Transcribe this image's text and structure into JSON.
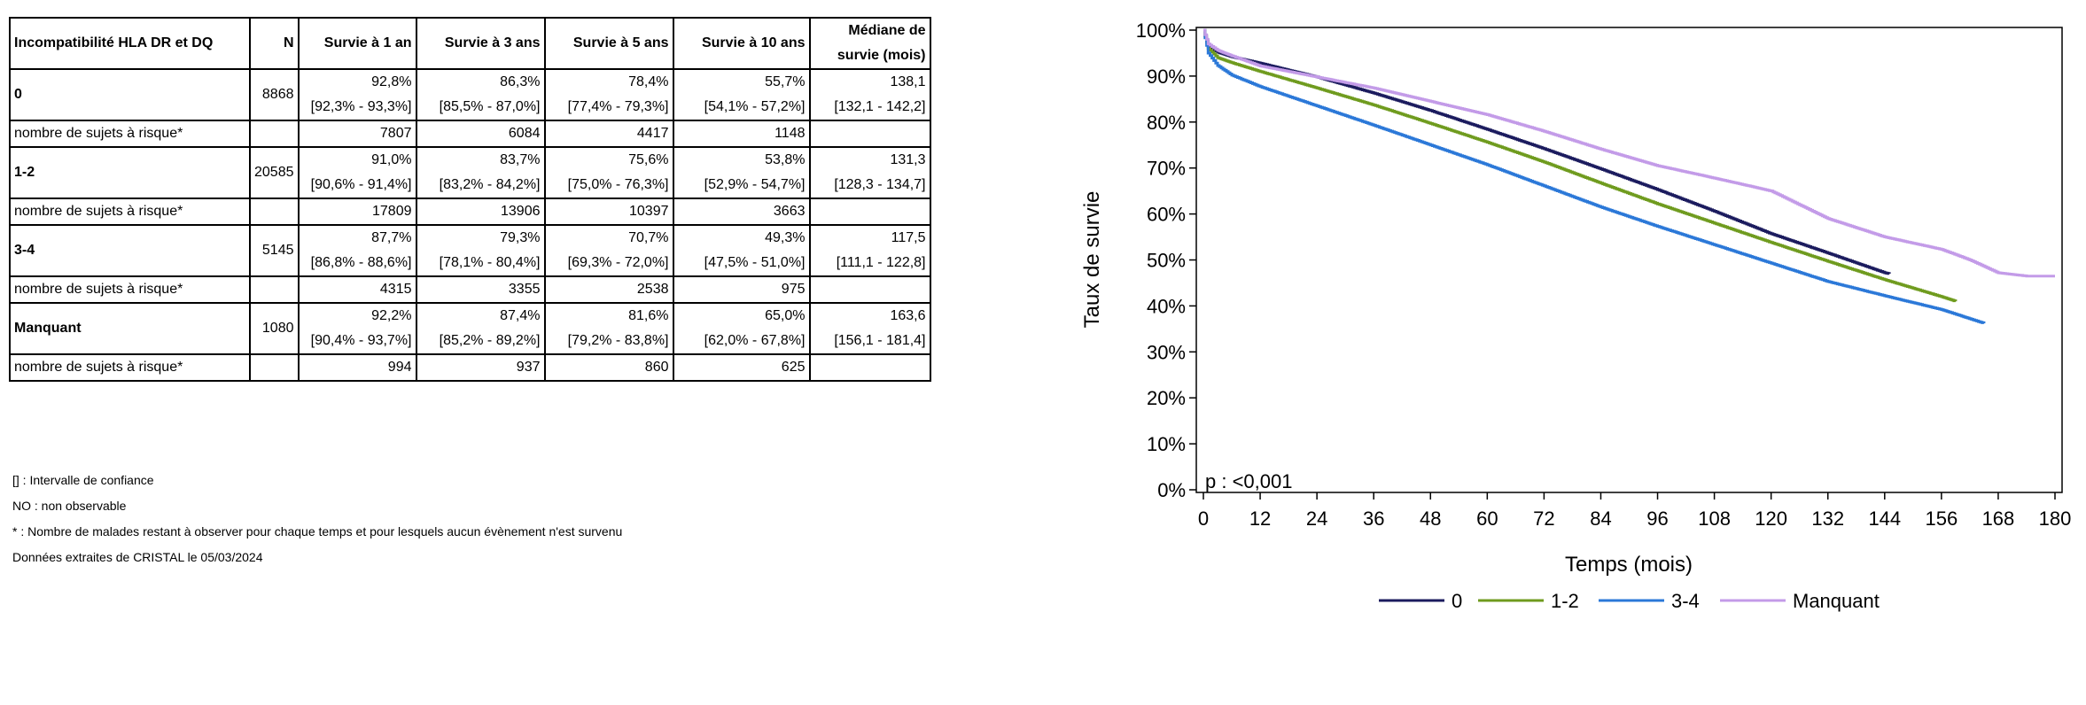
{
  "table": {
    "headers": [
      "Incompatibilité HLA DR et DQ",
      "N",
      "Survie à 1 an",
      "Survie à 3 ans",
      "Survie à 5 ans",
      "Survie à 10 ans",
      "Médiane de survie (mois)"
    ],
    "header_median_line1": "Médiane de",
    "header_median_line2": "survie (mois)",
    "groups": [
      {
        "label": "0",
        "n": "8868",
        "values": [
          "92,8%",
          "86,3%",
          "78,4%",
          "55,7%",
          "138,1"
        ],
        "ci": [
          "[92,3% - 93,3%]",
          "[85,5% - 87,0%]",
          "[77,4% - 79,3%]",
          "[54,1% - 57,2%]",
          "[132,1 - 142,2]"
        ],
        "risk_label": "nombre de sujets à risque*",
        "risk": [
          "7807",
          "6084",
          "4417",
          "1148"
        ]
      },
      {
        "label": "1-2",
        "n": "20585",
        "values": [
          "91,0%",
          "83,7%",
          "75,6%",
          "53,8%",
          "131,3"
        ],
        "ci": [
          "[90,6% - 91,4%]",
          "[83,2% - 84,2%]",
          "[75,0% - 76,3%]",
          "[52,9% - 54,7%]",
          "[128,3 - 134,7]"
        ],
        "risk_label": "nombre de sujets à risque*",
        "risk": [
          "17809",
          "13906",
          "10397",
          "3663"
        ]
      },
      {
        "label": "3-4",
        "n": "5145",
        "values": [
          "87,7%",
          "79,3%",
          "70,7%",
          "49,3%",
          "117,5"
        ],
        "ci": [
          "[86,8% - 88,6%]",
          "[78,1% - 80,4%]",
          "[69,3% - 72,0%]",
          "[47,5% - 51,0%]",
          "[111,1 - 122,8]"
        ],
        "risk_label": "nombre de sujets à risque*",
        "risk": [
          "4315",
          "3355",
          "2538",
          "975"
        ]
      },
      {
        "label": "Manquant",
        "n": "1080",
        "values": [
          "92,2%",
          "87,4%",
          "81,6%",
          "65,0%",
          "163,6"
        ],
        "ci": [
          "[90,4% - 93,7%]",
          "[85,2% - 89,2%]",
          "[79,2% - 83,8%]",
          "[62,0% - 67,8%]",
          "[156,1 - 181,4]"
        ],
        "risk_label": "nombre de sujets à risque*",
        "risk": [
          "994",
          "937",
          "860",
          "625"
        ]
      }
    ]
  },
  "footnotes": [
    "[] : Intervalle de confiance",
    "NO : non observable",
    "* : Nombre de malades restant à observer pour chaque temps et pour lesquels aucun évènement n'est survenu",
    "Données extraites de CRISTAL le 05/03/2024"
  ],
  "chart_data": {
    "type": "line",
    "xlabel": "Temps (mois)",
    "ylabel": "Taux de survie",
    "xlim": [
      0,
      180
    ],
    "ylim": [
      0,
      100
    ],
    "x_ticks": [
      0,
      12,
      24,
      36,
      48,
      60,
      72,
      84,
      96,
      108,
      120,
      132,
      144,
      156,
      168,
      180
    ],
    "y_ticks": [
      0,
      10,
      20,
      30,
      40,
      50,
      60,
      70,
      80,
      90,
      100
    ],
    "y_tick_labels": [
      "0%",
      "10%",
      "20%",
      "30%",
      "40%",
      "50%",
      "60%",
      "70%",
      "80%",
      "90%",
      "100%"
    ],
    "grid": false,
    "legend_position": "bottom",
    "annotation": "p : <0,001",
    "series": [
      {
        "name": "0",
        "color": "#1b1b5e",
        "points": [
          [
            0,
            100
          ],
          [
            1,
            96.5
          ],
          [
            3,
            95.2
          ],
          [
            6,
            94.2
          ],
          [
            12,
            92.8
          ],
          [
            24,
            89.8
          ],
          [
            36,
            86.3
          ],
          [
            48,
            82.5
          ],
          [
            60,
            78.4
          ],
          [
            72,
            74.2
          ],
          [
            84,
            69.8
          ],
          [
            96,
            65.3
          ],
          [
            108,
            60.6
          ],
          [
            120,
            55.7
          ],
          [
            132,
            51.5
          ],
          [
            144,
            47.2
          ],
          [
            145,
            47.0
          ]
        ]
      },
      {
        "name": "1-2",
        "color": "#6f9b1e",
        "points": [
          [
            0,
            100
          ],
          [
            1,
            96.0
          ],
          [
            3,
            94.0
          ],
          [
            6,
            92.9
          ],
          [
            12,
            91.0
          ],
          [
            24,
            87.4
          ],
          [
            36,
            83.7
          ],
          [
            48,
            79.7
          ],
          [
            60,
            75.6
          ],
          [
            72,
            71.3
          ],
          [
            84,
            66.7
          ],
          [
            96,
            62.2
          ],
          [
            108,
            58.0
          ],
          [
            120,
            53.8
          ],
          [
            132,
            49.7
          ],
          [
            144,
            45.7
          ],
          [
            156,
            42.0
          ],
          [
            159,
            41.0
          ]
        ]
      },
      {
        "name": "3-4",
        "color": "#2b78d8",
        "points": [
          [
            0,
            100
          ],
          [
            1,
            95.0
          ],
          [
            3,
            92.3
          ],
          [
            6,
            90.2
          ],
          [
            12,
            87.7
          ],
          [
            24,
            83.5
          ],
          [
            36,
            79.3
          ],
          [
            48,
            75.0
          ],
          [
            60,
            70.7
          ],
          [
            72,
            66.1
          ],
          [
            84,
            61.5
          ],
          [
            96,
            57.3
          ],
          [
            108,
            53.3
          ],
          [
            120,
            49.3
          ],
          [
            132,
            45.3
          ],
          [
            144,
            42.2
          ],
          [
            156,
            39.2
          ],
          [
            165,
            36.2
          ]
        ]
      },
      {
        "name": "Manquant",
        "color": "#c39be8",
        "points": [
          [
            0,
            100
          ],
          [
            1,
            97.0
          ],
          [
            3,
            95.6
          ],
          [
            6,
            94.4
          ],
          [
            12,
            92.2
          ],
          [
            24,
            89.8
          ],
          [
            36,
            87.4
          ],
          [
            48,
            84.5
          ],
          [
            60,
            81.6
          ],
          [
            72,
            78.0
          ],
          [
            84,
            74.1
          ],
          [
            96,
            70.5
          ],
          [
            108,
            67.8
          ],
          [
            120,
            65.0
          ],
          [
            132,
            59.0
          ],
          [
            144,
            55.0
          ],
          [
            156,
            52.3
          ],
          [
            162,
            50.0
          ],
          [
            168,
            47.2
          ],
          [
            174,
            46.5
          ],
          [
            180,
            46.5
          ]
        ]
      }
    ]
  }
}
